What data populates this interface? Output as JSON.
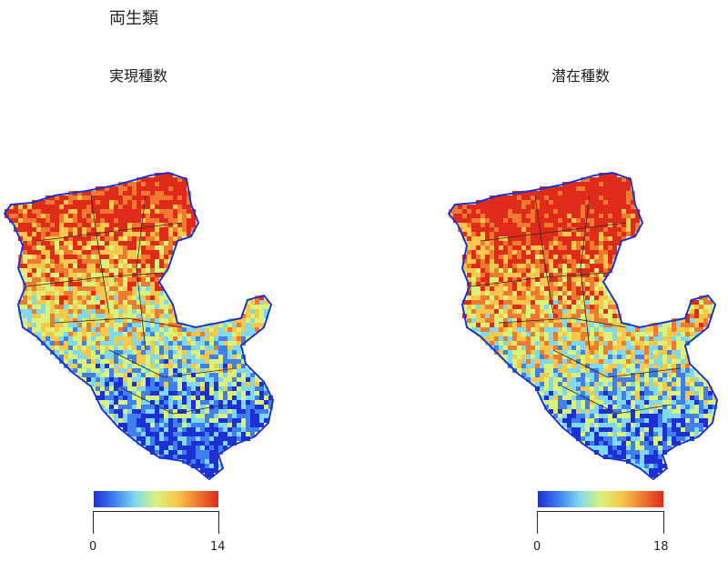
{
  "title": "両生類",
  "panels": [
    {
      "subtitle": "実現種数",
      "legend": {
        "min_label": "0",
        "max_label": "14",
        "min": 0,
        "max": 14
      }
    },
    {
      "subtitle": "潜在種数",
      "legend": {
        "min_label": "0",
        "max_label": "18",
        "min": 0,
        "max": 18
      }
    }
  ],
  "colors": {
    "scale": [
      "#1f2fd6",
      "#3f7ff0",
      "#7fd9f0",
      "#d9f27a",
      "#f7c84a",
      "#f07a2f",
      "#e02a1a"
    ],
    "boundary": "#2a2a2a",
    "water_edge": "#1a35c8"
  }
}
